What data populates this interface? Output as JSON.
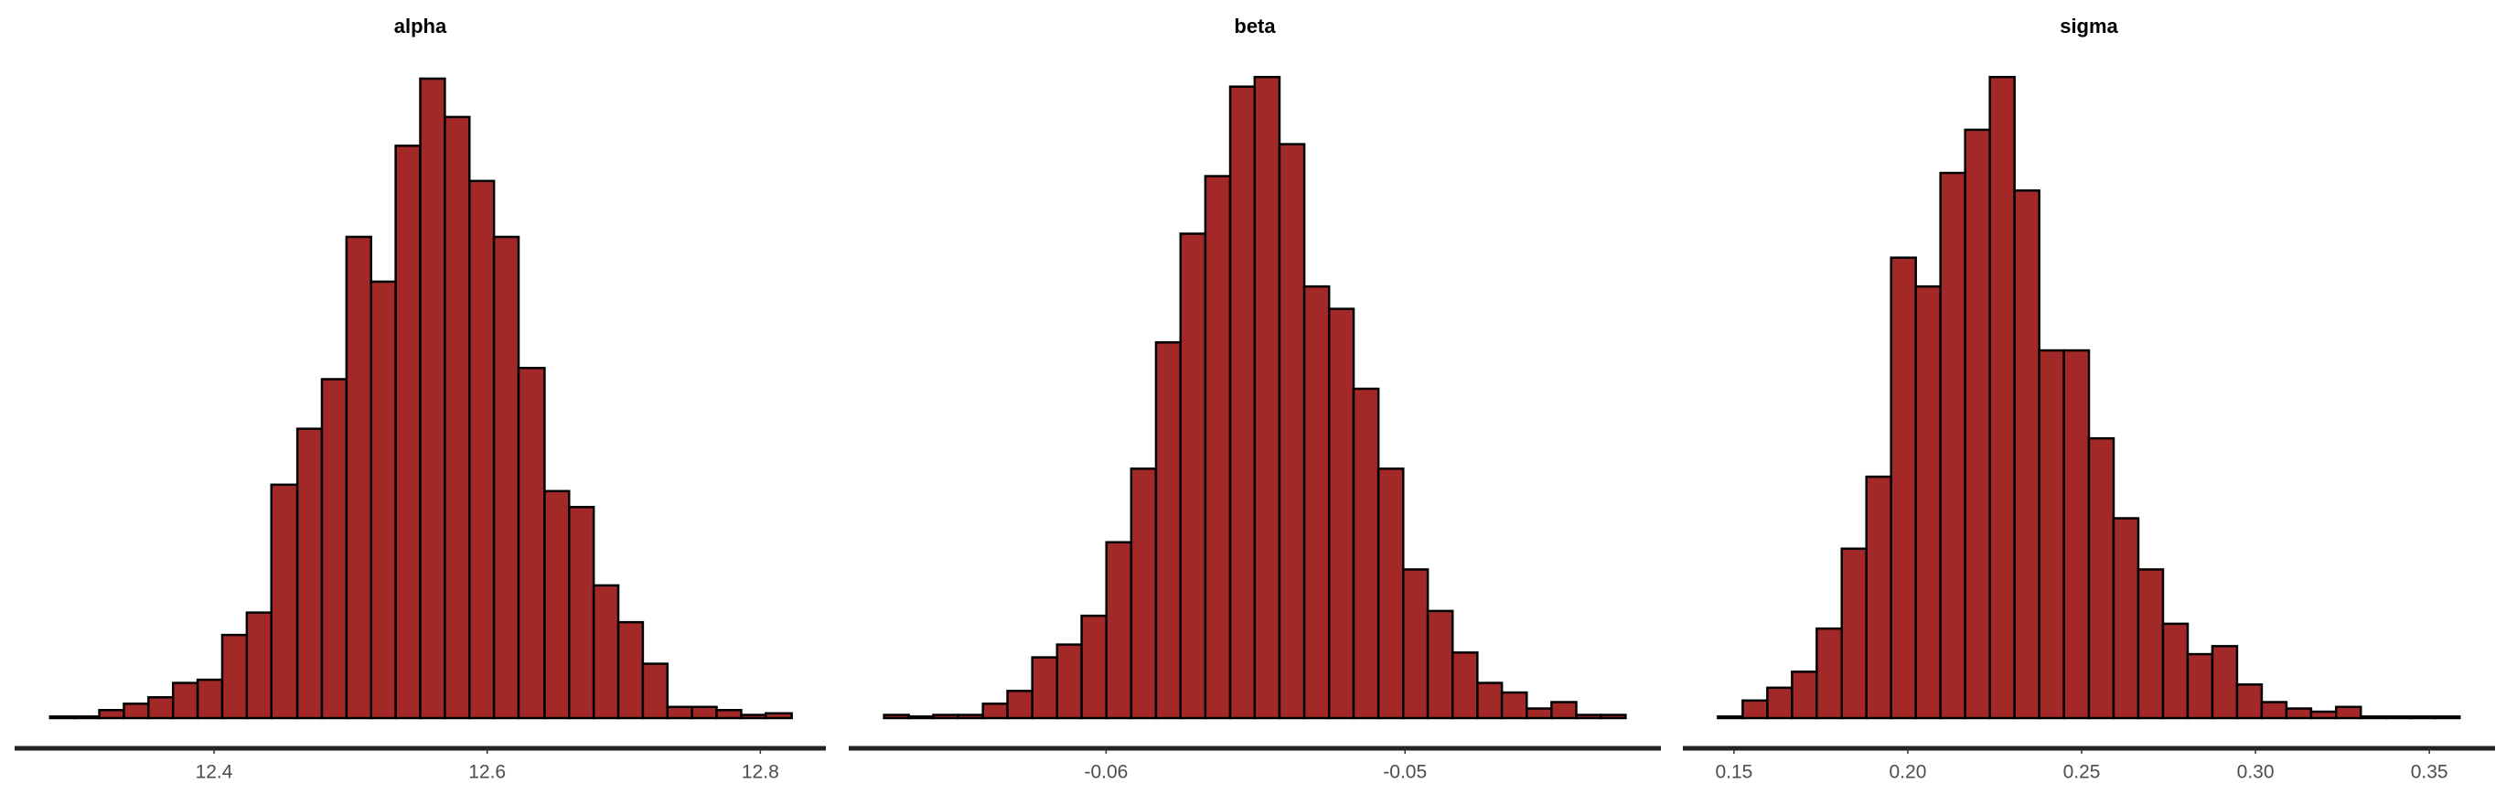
{
  "chart_data": [
    {
      "type": "histogram",
      "title": "alpha",
      "color": "#a32929",
      "edgecolor": "#000000",
      "bins": [
        12.28,
        12.298,
        12.316,
        12.334,
        12.352,
        12.37,
        12.388,
        12.406,
        12.424,
        12.442,
        12.461,
        12.479,
        12.497,
        12.515,
        12.533,
        12.551,
        12.569,
        12.587,
        12.605,
        12.623,
        12.642,
        12.66,
        12.678,
        12.696,
        12.714,
        12.732,
        12.75,
        12.768,
        12.786,
        12.804,
        12.823
      ],
      "values": [
        1,
        1,
        5,
        9,
        13,
        22,
        24,
        52,
        66,
        146,
        181,
        212,
        301,
        273,
        358,
        400,
        376,
        336,
        301,
        219,
        142,
        132,
        83,
        60,
        34,
        7,
        7,
        5,
        2,
        3
      ],
      "xlim": [
        12.254,
        12.848
      ],
      "xticks": [
        12.4,
        12.6,
        12.8
      ],
      "ylim": [
        0,
        420
      ]
    },
    {
      "type": "histogram",
      "title": "beta",
      "color": "#a32929",
      "edgecolor": "#000000",
      "bins": [
        -0.06743,
        -0.0666,
        -0.06578,
        -0.06495,
        -0.06412,
        -0.0633,
        -0.06247,
        -0.06164,
        -0.06082,
        -0.05999,
        -0.05916,
        -0.05833,
        -0.05751,
        -0.05668,
        -0.05585,
        -0.05503,
        -0.0542,
        -0.05337,
        -0.05254,
        -0.05172,
        -0.05089,
        -0.05006,
        -0.04924,
        -0.04841,
        -0.04758,
        -0.04676,
        -0.04593,
        -0.0451,
        -0.04427,
        -0.04345,
        -0.04262
      ],
      "values": [
        2,
        1,
        2,
        2,
        9,
        17,
        38,
        46,
        64,
        110,
        156,
        235,
        303,
        339,
        395,
        401,
        359,
        270,
        256,
        206,
        156,
        93,
        67,
        41,
        22,
        16,
        6,
        10,
        2,
        2
      ],
      "xlim": [
        -0.06861,
        -0.04144
      ],
      "xticks": [
        -0.06,
        -0.05
      ],
      "ylim": [
        0,
        420
      ]
    },
    {
      "type": "histogram",
      "title": "sigma",
      "color": "#a32929",
      "edgecolor": "#000000",
      "bins": [
        0.1454,
        0.1525,
        0.1596,
        0.1667,
        0.1738,
        0.181,
        0.1881,
        0.1952,
        0.2023,
        0.2094,
        0.2165,
        0.2236,
        0.2307,
        0.2378,
        0.2449,
        0.2521,
        0.2592,
        0.2663,
        0.2734,
        0.2805,
        0.2876,
        0.2947,
        0.3018,
        0.3089,
        0.316,
        0.3232,
        0.3303,
        0.3374,
        0.3445,
        0.3516,
        0.3587
      ],
      "values": [
        1,
        11,
        19,
        29,
        56,
        106,
        151,
        288,
        270,
        341,
        368,
        401,
        330,
        230,
        230,
        175,
        125,
        93,
        59,
        40,
        45,
        21,
        10,
        6,
        4,
        7,
        1,
        1,
        1,
        1
      ],
      "xlim": [
        0.1353,
        0.3689
      ],
      "xticks": [
        0.15,
        {
          "value": 0.2,
          "label": "0.20"
        },
        0.25,
        {
          "value": 0.3,
          "label": "0.30"
        },
        0.35
      ],
      "ylim": [
        0,
        420
      ]
    }
  ]
}
